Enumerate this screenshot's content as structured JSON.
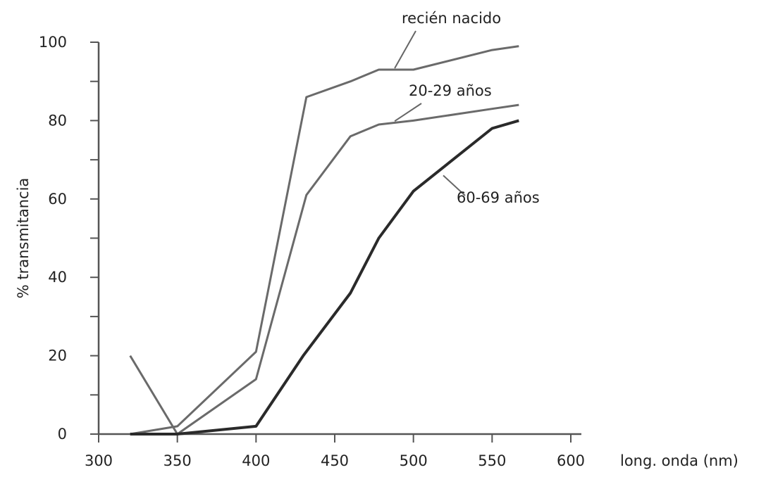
{
  "chart_data": {
    "type": "line",
    "title": "",
    "xlabel": "long. onda (nm)",
    "ylabel": "% transmitancia",
    "xlim": [
      300,
      600
    ],
    "ylim": [
      0,
      100
    ],
    "xticks": [
      300,
      350,
      400,
      450,
      500,
      550,
      600
    ],
    "yticks": [
      0,
      20,
      40,
      60,
      80,
      100
    ],
    "grid": false,
    "legend": "inline labels",
    "series": [
      {
        "name": "recién nacido",
        "color": "#6a6a6a",
        "x": [
          320,
          350,
          400,
          432,
          460,
          478,
          500,
          550,
          567
        ],
        "y": [
          0,
          2,
          21,
          86,
          90,
          93,
          93,
          98,
          99
        ]
      },
      {
        "name": "20-29 años",
        "color": "#6a6a6a",
        "x": [
          320,
          350,
          400,
          432,
          460,
          478,
          500,
          550,
          567
        ],
        "y": [
          20,
          0,
          14,
          61,
          76,
          79,
          80,
          83,
          84
        ]
      },
      {
        "name": "60-69 años",
        "color": "#2a2a2a",
        "x": [
          320,
          350,
          400,
          430,
          460,
          478,
          500,
          550,
          567
        ],
        "y": [
          0,
          0,
          2,
          20,
          36,
          50,
          62,
          78,
          80
        ]
      }
    ]
  }
}
